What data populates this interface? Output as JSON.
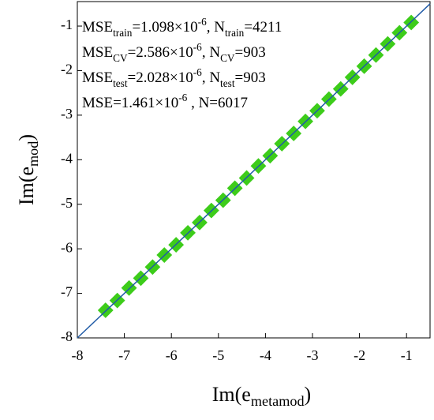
{
  "chart_data": {
    "type": "scatter",
    "x_label": [
      {
        "text": "Im(e",
        "pos": "base"
      },
      {
        "text": "metamod",
        "pos": "sub"
      },
      {
        "text": ")",
        "pos": "base"
      }
    ],
    "y_label": [
      {
        "text": "Im(e",
        "pos": "base"
      },
      {
        "text": "mod",
        "pos": "sub"
      },
      {
        "text": ")",
        "pos": "base"
      }
    ],
    "annotations": [
      [
        {
          "text": "MSE",
          "pos": "base"
        },
        {
          "text": "train",
          "pos": "sub"
        },
        {
          "text": "=1.098×10",
          "pos": "base"
        },
        {
          "text": "-6",
          "pos": "sup"
        },
        {
          "text": ", N",
          "pos": "base"
        },
        {
          "text": "train",
          "pos": "sub"
        },
        {
          "text": "=4211",
          "pos": "base"
        }
      ],
      [
        {
          "text": "MSE",
          "pos": "base"
        },
        {
          "text": "CV",
          "pos": "sub"
        },
        {
          "text": "=2.586×10",
          "pos": "base"
        },
        {
          "text": "-6",
          "pos": "sup"
        },
        {
          "text": ", N",
          "pos": "base"
        },
        {
          "text": "CV",
          "pos": "sub"
        },
        {
          "text": "=903",
          "pos": "base"
        }
      ],
      [
        {
          "text": "MSE",
          "pos": "base"
        },
        {
          "text": "test",
          "pos": "sub"
        },
        {
          "text": "=2.028×10",
          "pos": "base"
        },
        {
          "text": "-6",
          "pos": "sup"
        },
        {
          "text": ", N",
          "pos": "base"
        },
        {
          "text": "test",
          "pos": "sub"
        },
        {
          "text": "=903",
          "pos": "base"
        }
      ],
      [
        {
          "text": "MSE=1.461×10",
          "pos": "base"
        },
        {
          "text": "-6",
          "pos": "sup"
        },
        {
          "text": " , N=6017",
          "pos": "base"
        }
      ]
    ],
    "x": [
      -7.4,
      -7.15,
      -6.9,
      -6.65,
      -6.4,
      -6.15,
      -5.9,
      -5.65,
      -5.4,
      -5.15,
      -4.9,
      -4.65,
      -4.4,
      -4.15,
      -3.9,
      -3.65,
      -3.4,
      -3.15,
      -2.9,
      -2.65,
      -2.4,
      -2.15,
      -1.9,
      -1.65,
      -1.4,
      -1.15,
      -0.9
    ],
    "series": [
      {
        "color": "#3dcc1a",
        "values": [
          -7.38,
          -7.16,
          -6.88,
          -6.66,
          -6.41,
          -6.14,
          -5.91,
          -5.64,
          -5.41,
          -5.14,
          -4.91,
          -4.64,
          -4.41,
          -4.14,
          -3.91,
          -3.64,
          -3.41,
          -3.14,
          -2.9,
          -2.64,
          -2.41,
          -2.15,
          -1.9,
          -1.65,
          -1.4,
          -1.15,
          -0.92
        ]
      }
    ],
    "line_color": "#1f5aa6",
    "xlim": [
      -8,
      -0.5
    ],
    "ylim": [
      -8,
      -0.45
    ],
    "xticks": [
      -8,
      -7,
      -6,
      -5,
      -4,
      -3,
      -2,
      -1
    ],
    "yticks": [
      -8,
      -7,
      -6,
      -5,
      -4,
      -3,
      -2,
      -1
    ]
  }
}
